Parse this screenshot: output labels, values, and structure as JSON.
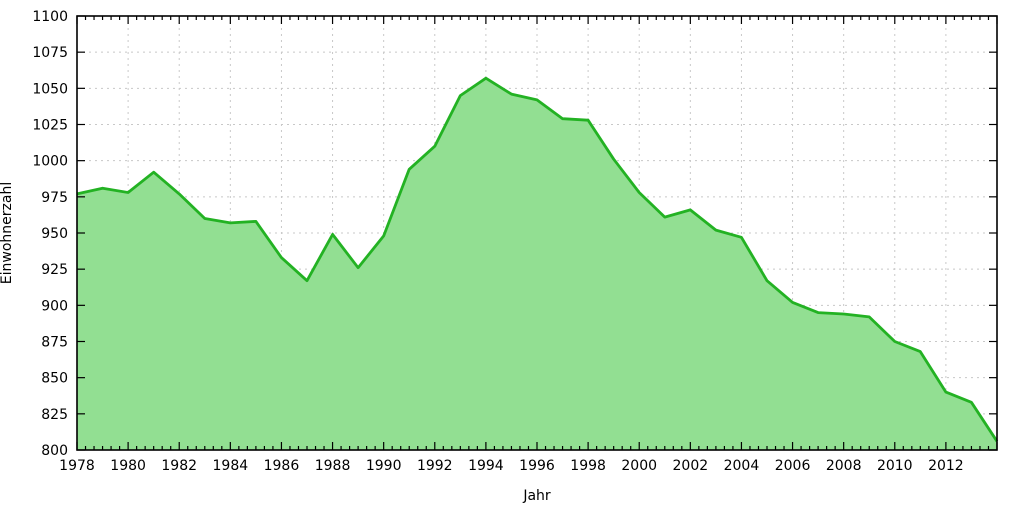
{
  "chart_data": {
    "type": "area",
    "title": "",
    "xlabel": "Jahr",
    "ylabel": "Einwohnerzahl",
    "x": [
      1978,
      1979,
      1980,
      1981,
      1982,
      1983,
      1984,
      1985,
      1986,
      1987,
      1988,
      1989,
      1990,
      1991,
      1992,
      1993,
      1994,
      1995,
      1996,
      1997,
      1998,
      1999,
      2000,
      2001,
      2002,
      2003,
      2004,
      2005,
      2006,
      2007,
      2008,
      2009,
      2010,
      2011,
      2012,
      2013,
      2014
    ],
    "values": [
      977,
      981,
      978,
      992,
      977,
      960,
      957,
      958,
      933,
      917,
      949,
      926,
      948,
      994,
      1010,
      1045,
      1057,
      1046,
      1042,
      1029,
      1028,
      1001,
      978,
      961,
      966,
      952,
      947,
      917,
      902,
      895,
      894,
      892,
      875,
      868,
      840,
      833,
      806
    ],
    "xlim": [
      1978,
      2014
    ],
    "ylim": [
      800,
      1100
    ],
    "x_major_ticks": [
      1978,
      1980,
      1982,
      1984,
      1986,
      1988,
      1990,
      1992,
      1994,
      1996,
      1998,
      2000,
      2002,
      2004,
      2006,
      2008,
      2010,
      2012
    ],
    "x_minor_divisions_per_year": 3,
    "y_major_ticks": [
      800,
      825,
      850,
      875,
      900,
      925,
      950,
      975,
      1000,
      1025,
      1050,
      1075,
      1100
    ],
    "grid": true,
    "legend_position": "none",
    "colors": {
      "line": "#23b223",
      "fill": "#92df92",
      "grid": "#c8c8c8",
      "axis": "#000000",
      "text": "#000000",
      "background": "#ffffff"
    }
  }
}
